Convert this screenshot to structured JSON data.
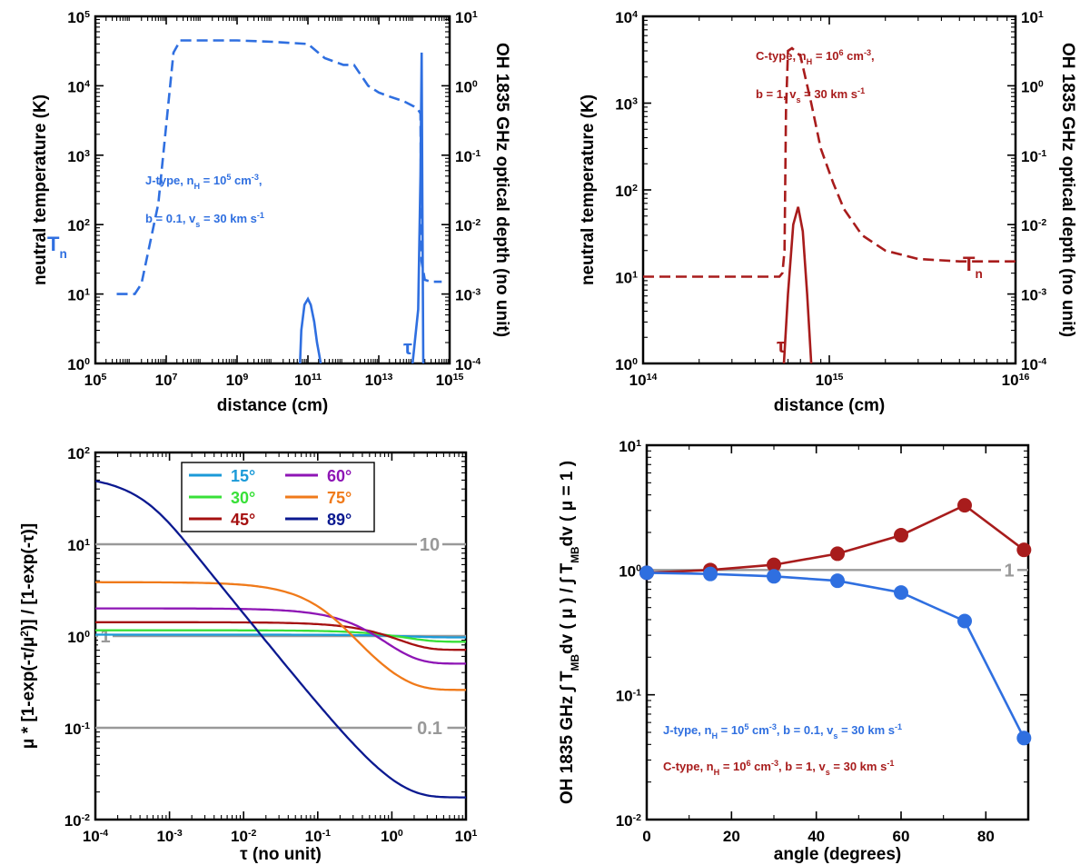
{
  "colors": {
    "blue": "#2f6fe0",
    "darkred": "#a81c1c",
    "gray": "#999999",
    "c15": "#1b9ad8",
    "c30": "#38e038",
    "c45": "#a51010",
    "c60": "#8e15b5",
    "c75": "#f07a1a",
    "c89": "#0b1990"
  },
  "chart_data": [
    {
      "id": "jshock",
      "type": "line",
      "xlabel": "distance (cm)",
      "ylabel": "neutral temperature (K)",
      "ylabel_right": "OH 1835 GHz optical depth (no unit)",
      "xscale": "log",
      "xlim": [
        100000.0,
        1000000000000000.0
      ],
      "yscale": "log",
      "ylim": [
        1,
        100000.0
      ],
      "y2scale": "log",
      "y2lim": [
        0.0001,
        10
      ],
      "xticks": [
        100000.0,
        10000000.0,
        1000000000.0,
        100000000000.0,
        10000000000000.0,
        1000000000000000.0
      ],
      "xtick_labels": [
        [
          "10",
          "5"
        ],
        [
          "10",
          "7"
        ],
        [
          "10",
          "9"
        ],
        [
          "10",
          "11"
        ],
        [
          "10",
          "13"
        ],
        [
          "10",
          "15"
        ]
      ],
      "yticks": [
        1,
        10,
        100,
        1000,
        10000,
        100000
      ],
      "ytick_labels": [
        [
          "10",
          "0"
        ],
        [
          "10",
          "1"
        ],
        [
          "10",
          "2"
        ],
        [
          "10",
          "3"
        ],
        [
          "10",
          "4"
        ],
        [
          "10",
          "5"
        ]
      ],
      "y2ticks": [
        0.0001,
        0.001,
        0.01,
        0.1,
        1,
        10
      ],
      "y2tick_labels": [
        [
          "10",
          "-4"
        ],
        [
          "10",
          "-3"
        ],
        [
          "10",
          "-2"
        ],
        [
          "10",
          "-1"
        ],
        [
          "10",
          "0"
        ],
        [
          "10",
          "1"
        ]
      ],
      "label_Tn": [
        "T",
        "n"
      ],
      "label_tau": "τ",
      "annotation_lines": [
        [
          "J-type, n",
          "H",
          " = 10",
          "5",
          " cm",
          "-3",
          ","
        ],
        [
          "b = 0.1, v",
          "s",
          " = 30 km s",
          "-1"
        ]
      ],
      "series": [
        {
          "name": "Tn",
          "style": "dashed",
          "color": "blue",
          "axis": "left",
          "x": [
            400000.0,
            1300000.0,
            2000000.0,
            6000000.0,
            16000000.0,
            25000000.0,
            100000000.0,
            1000000000.0,
            10000000000.0,
            100000000000.0,
            300000000000.0,
            1000000000000.0,
            2000000000000.0,
            5000000000000.0,
            10000000000000.0,
            20000000000000.0,
            50000000000000.0,
            100000000000000.0,
            130000000000000.0,
            150000000000000.0,
            160000000000000.0,
            200000000000000.0,
            300000000000000.0,
            600000000000000.0
          ],
          "y": [
            10,
            10,
            14,
            200,
            30000,
            45000,
            45000,
            45000,
            43000,
            40000,
            25000,
            20000,
            20000,
            10000,
            8000,
            7000,
            6000,
            5000,
            4500,
            4000,
            30,
            16,
            15,
            15
          ]
        },
        {
          "name": "tau",
          "style": "solid",
          "color": "blue",
          "axis": "right",
          "x": [
            60000000000.0,
            65000000000.0,
            80000000000.0,
            100000000000.0,
            120000000000.0,
            150000000000.0,
            180000000000.0,
            210000000000.0,
            230000000000.0
          ],
          "y": [
            0.0001,
            0.0003,
            0.0007,
            0.00085,
            0.0007,
            0.0004,
            0.0002,
            0.00013,
            0.0001
          ]
        },
        {
          "name": "tau-spike",
          "style": "solid",
          "color": "blue",
          "axis": "right",
          "x": [
            90000000000000.0,
            130000000000000.0,
            150000000000000.0,
            162000000000000.0,
            170000000000000.0,
            180000000000000.0
          ],
          "y": [
            0.0001,
            0.0006,
            0.05,
            3.0,
            0.02,
            0.0001
          ]
        }
      ]
    },
    {
      "id": "cshock",
      "type": "line",
      "xlabel": "distance (cm)",
      "ylabel": "neutral temperature (K)",
      "ylabel_right": "OH 1835 GHz optical depth (no unit)",
      "xscale": "log",
      "xlim": [
        100000000000000.0,
        1e+16
      ],
      "yscale": "log",
      "ylim": [
        1,
        10000
      ],
      "y2scale": "log",
      "y2lim": [
        0.0001,
        10
      ],
      "xticks": [
        100000000000000.0,
        1000000000000000.0,
        1e+16
      ],
      "xtick_labels": [
        [
          "10",
          "14"
        ],
        [
          "10",
          "15"
        ],
        [
          "10",
          "16"
        ]
      ],
      "yticks": [
        1,
        10,
        100,
        1000,
        10000
      ],
      "ytick_labels": [
        [
          "10",
          "0"
        ],
        [
          "10",
          "1"
        ],
        [
          "10",
          "2"
        ],
        [
          "10",
          "3"
        ],
        [
          "10",
          "4"
        ]
      ],
      "y2ticks": [
        0.0001,
        0.001,
        0.01,
        0.1,
        1,
        10
      ],
      "y2tick_labels": [
        [
          "10",
          "-4"
        ],
        [
          "10",
          "-3"
        ],
        [
          "10",
          "-2"
        ],
        [
          "10",
          "-1"
        ],
        [
          "10",
          "0"
        ],
        [
          "10",
          "1"
        ]
      ],
      "label_Tn": [
        "T",
        "n"
      ],
      "label_tau": "τ",
      "annotation_lines": [
        [
          "C-type, n",
          "H",
          " = 10",
          "6",
          " cm",
          "-3",
          ","
        ],
        [
          "b = 1, v",
          "s",
          " = 30 km s",
          "-1"
        ]
      ],
      "series": [
        {
          "name": "Tn",
          "style": "dashed",
          "color": "darkred",
          "axis": "left",
          "x": [
            100000000000000.0,
            300000000000000.0,
            540000000000000.0,
            560000000000000.0,
            575000000000000.0,
            585000000000000.0,
            600000000000000.0,
            630000000000000.0,
            700000000000000.0,
            800000000000000.0,
            900000000000000.0,
            1050000000000000.0,
            1200000000000000.0,
            1500000000000000.0,
            2000000000000000.0,
            3000000000000000.0,
            5000000000000000.0,
            1e+16
          ],
          "y": [
            10,
            10,
            10,
            11,
            20,
            800,
            4000,
            4300,
            3500,
            1000,
            300,
            120,
            60,
            30,
            20,
            16,
            15,
            15
          ]
        },
        {
          "name": "tau",
          "style": "solid",
          "color": "darkred",
          "axis": "right",
          "x": [
            570000000000000.0,
            600000000000000.0,
            640000000000000.0,
            680000000000000.0,
            720000000000000.0,
            760000000000000.0,
            800000000000000.0
          ],
          "y": [
            0.0001,
            0.001,
            0.01,
            0.018,
            0.008,
            0.001,
            0.0001
          ]
        }
      ]
    },
    {
      "id": "ratio",
      "type": "line",
      "xlabel": "τ (no unit)",
      "ylabel_parts": [
        "μ * [1-exp(-τ/μ",
        "2",
        ")] / [1-exp(-τ)]"
      ],
      "xscale": "log",
      "xlim": [
        0.0001,
        10
      ],
      "yscale": "log",
      "ylim": [
        0.01,
        100
      ],
      "xticks": [
        0.0001,
        0.001,
        0.01,
        0.1,
        1,
        10
      ],
      "xtick_labels": [
        [
          "10",
          "-4"
        ],
        [
          "10",
          "-3"
        ],
        [
          "10",
          "-2"
        ],
        [
          "10",
          "-1"
        ],
        [
          "10",
          "0"
        ],
        [
          "10",
          "1"
        ]
      ],
      "yticks": [
        0.01,
        0.1,
        1,
        10,
        100
      ],
      "ytick_labels": [
        [
          "10",
          "-2"
        ],
        [
          "10",
          "-1"
        ],
        [
          "10",
          "0"
        ],
        [
          "10",
          "1"
        ],
        [
          "10",
          "2"
        ]
      ],
      "reference_lines": [
        {
          "y": 10,
          "label": "10"
        },
        {
          "y": 1,
          "label": "1"
        },
        {
          "y": 0.1,
          "label": "0.1"
        }
      ],
      "legend": [
        {
          "label": "15°",
          "color": "c15"
        },
        {
          "label": "30°",
          "color": "c30"
        },
        {
          "label": "45°",
          "color": "c45"
        },
        {
          "label": "60°",
          "color": "c60"
        },
        {
          "label": "75°",
          "color": "c75"
        },
        {
          "label": "89°",
          "color": "c89"
        }
      ],
      "series": [
        {
          "name": "15°",
          "angle_deg": 15,
          "color": "c15"
        },
        {
          "name": "30°",
          "angle_deg": 30,
          "color": "c30"
        },
        {
          "name": "45°",
          "angle_deg": 45,
          "color": "c45"
        },
        {
          "name": "60°",
          "angle_deg": 60,
          "color": "c60"
        },
        {
          "name": "75°",
          "angle_deg": 75,
          "color": "c75"
        },
        {
          "name": "89°",
          "angle_deg": 89,
          "color": "c89"
        }
      ]
    },
    {
      "id": "angle",
      "type": "line",
      "xlabel": "angle (degrees)",
      "ylabel_parts": [
        "OH 1835 GHz ∫ T",
        "MB",
        "dv ( μ ) / ∫ T",
        "MB",
        "dv ( μ = 1 )"
      ],
      "xscale": "linear",
      "xlim": [
        0,
        90
      ],
      "yscale": "log",
      "ylim": [
        0.01,
        10
      ],
      "xticks": [
        0,
        20,
        40,
        60,
        80
      ],
      "xtick_labels": [
        [
          "0",
          ""
        ],
        [
          "20",
          ""
        ],
        [
          "40",
          ""
        ],
        [
          "60",
          ""
        ],
        [
          "80",
          ""
        ]
      ],
      "yticks": [
        0.01,
        0.1,
        1,
        10
      ],
      "ytick_labels": [
        [
          "10",
          "-2"
        ],
        [
          "10",
          "-1"
        ],
        [
          "10",
          "0"
        ],
        [
          "10",
          "1"
        ]
      ],
      "reference_lines": [
        {
          "y": 1,
          "label": "1"
        }
      ],
      "annotation_J": [
        "J-type, n",
        "H",
        " = 10",
        "5",
        " cm",
        "-3",
        ", b = 0.1, v",
        "s",
        " = 30 km s",
        "-1"
      ],
      "annotation_C": [
        "C-type, n",
        "H",
        " = 10",
        "6",
        " cm",
        "-3",
        ", b = 1, v",
        "s",
        " = 30 km s",
        "-1"
      ],
      "series": [
        {
          "name": "C-type",
          "color": "darkred",
          "x": [
            0,
            15,
            30,
            45,
            60,
            75,
            89
          ],
          "y": [
            0.95,
            1.0,
            1.1,
            1.35,
            1.9,
            3.3,
            1.45
          ]
        },
        {
          "name": "J-type",
          "color": "blue",
          "x": [
            0,
            15,
            30,
            45,
            60,
            75,
            89
          ],
          "y": [
            0.95,
            0.93,
            0.89,
            0.82,
            0.66,
            0.39,
            0.045
          ]
        }
      ]
    }
  ]
}
